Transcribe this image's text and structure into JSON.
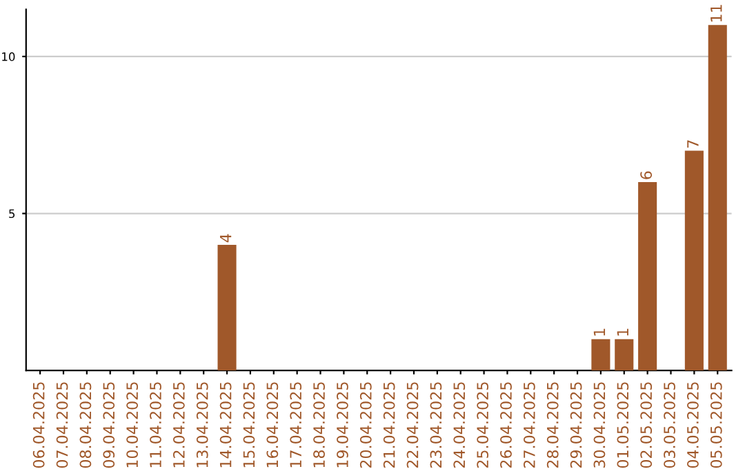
{
  "chart_data": {
    "type": "bar",
    "categories": [
      "06.04.2025",
      "07.04.2025",
      "08.04.2025",
      "09.04.2025",
      "10.04.2025",
      "11.04.2025",
      "12.04.2025",
      "13.04.2025",
      "14.04.2025",
      "15.04.2025",
      "16.04.2025",
      "17.04.2025",
      "18.04.2025",
      "19.04.2025",
      "20.04.2025",
      "21.04.2025",
      "22.04.2025",
      "23.04.2025",
      "24.04.2025",
      "25.04.2025",
      "26.04.2025",
      "27.04.2025",
      "28.04.2025",
      "29.04.2025",
      "30.04.2025",
      "01.05.2025",
      "02.05.2025",
      "03.05.2025",
      "04.05.2025",
      "05.05.2025"
    ],
    "values": [
      0,
      0,
      0,
      0,
      0,
      0,
      0,
      0,
      4,
      0,
      0,
      0,
      0,
      0,
      0,
      0,
      0,
      0,
      0,
      0,
      0,
      0,
      0,
      0,
      1,
      1,
      6,
      0,
      7,
      11
    ],
    "value_labels": [
      null,
      null,
      null,
      null,
      null,
      null,
      null,
      null,
      "4",
      null,
      null,
      null,
      null,
      null,
      null,
      null,
      null,
      null,
      null,
      null,
      null,
      null,
      null,
      null,
      "1",
      "1",
      "6",
      null,
      "7",
      "11"
    ],
    "color": "#a0582a",
    "ylim": [
      0,
      11.5
    ],
    "yticks": [
      5,
      10
    ],
    "grid": "y"
  }
}
